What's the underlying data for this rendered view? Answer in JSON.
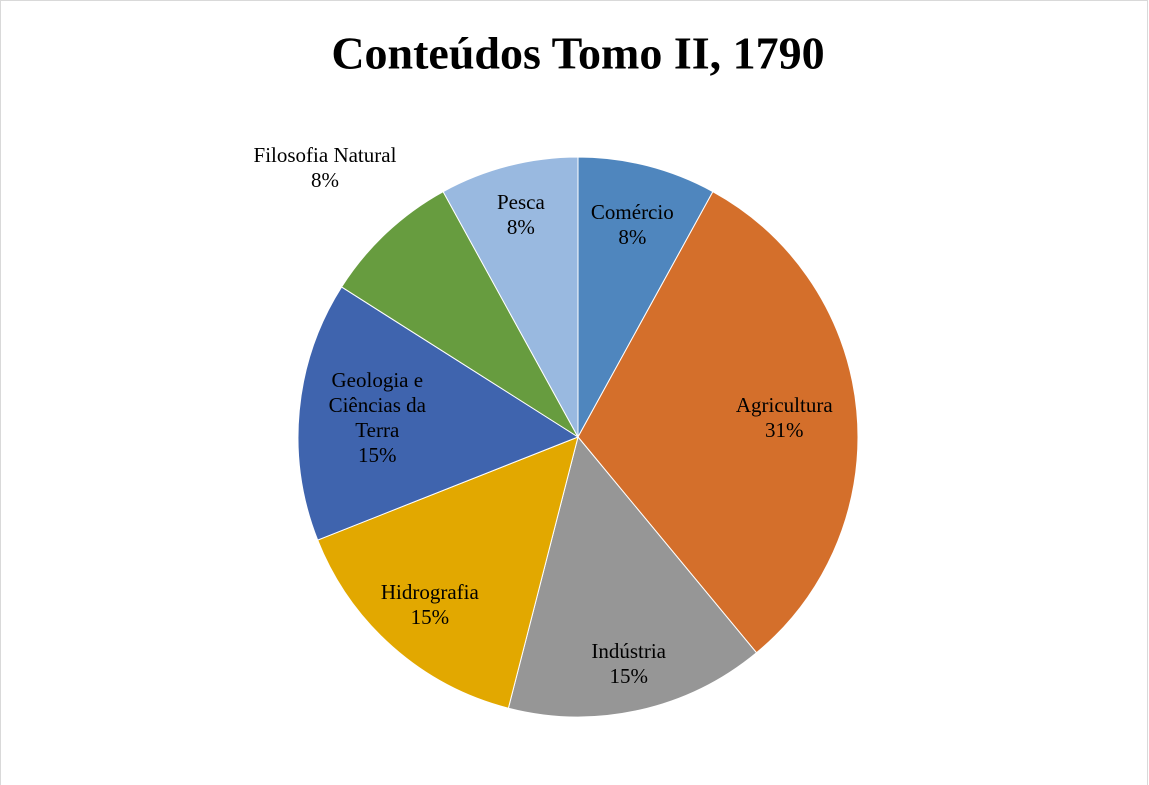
{
  "chart_data": {
    "type": "pie",
    "title": "Conteúdos Tomo II, 1790",
    "categories": [
      "Comércio",
      "Agricultura",
      "Indústria",
      "Hidrografia",
      "Geologia e Ciências da Terra",
      "Filosofia Natural",
      "Pesca"
    ],
    "values": [
      8,
      31,
      15,
      15,
      15,
      8,
      8
    ],
    "value_labels": [
      "8%",
      "31%",
      "15%",
      "15%",
      "15%",
      "8%",
      "8%"
    ],
    "colors": [
      "#4f86be",
      "#d46f2b",
      "#969696",
      "#e2a800",
      "#3f64ae",
      "#679c3f",
      "#99b9e0"
    ]
  }
}
